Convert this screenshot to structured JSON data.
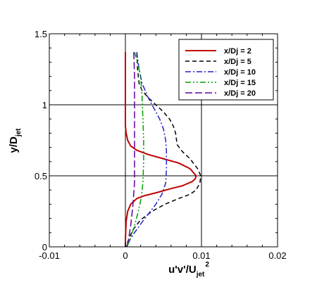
{
  "chart_data": {
    "type": "line",
    "xlabel": {
      "main": "u'v'/U",
      "sub": "jet",
      "sup": "2"
    },
    "ylabel": {
      "main": "y/D",
      "sub": "jet"
    },
    "xlim": [
      -0.01,
      0.02
    ],
    "ylim": [
      0,
      1.5
    ],
    "x_ticks": [
      -0.01,
      0,
      0.01,
      0.02
    ],
    "x_tick_labels": [
      "-0.01",
      "0",
      "0.01",
      "0.02"
    ],
    "y_ticks": [
      0,
      0.5,
      1,
      1.5
    ],
    "y_tick_labels": [
      "0",
      "0.5",
      "1",
      "1.5"
    ],
    "grid": true,
    "legend_position": "top-right",
    "series": [
      {
        "name": "x/Dj = 2",
        "color": "#c00000",
        "dash": "solid",
        "points": [
          [
            0.0,
            1.37
          ],
          [
            0.0,
            1.0
          ],
          [
            0.0,
            0.85
          ],
          [
            0.0001,
            0.8
          ],
          [
            0.0003,
            0.75
          ],
          [
            0.0007,
            0.71
          ],
          [
            0.0015,
            0.68
          ],
          [
            0.003,
            0.65
          ],
          [
            0.005,
            0.62
          ],
          [
            0.007,
            0.59
          ],
          [
            0.0085,
            0.55
          ],
          [
            0.0093,
            0.5
          ],
          [
            0.0092,
            0.48
          ],
          [
            0.0088,
            0.46
          ],
          [
            0.0075,
            0.43
          ],
          [
            0.006,
            0.41
          ],
          [
            0.004,
            0.38
          ],
          [
            0.0025,
            0.36
          ],
          [
            0.0015,
            0.34
          ],
          [
            0.0007,
            0.3
          ],
          [
            0.0003,
            0.25
          ],
          [
            0.0001,
            0.18
          ],
          [
            0.0,
            0.05
          ],
          [
            0.0,
            0.0
          ]
        ]
      },
      {
        "name": "x/Dj = 5",
        "color": "#000000",
        "dash": "6,4",
        "points": [
          [
            0.0015,
            1.37
          ],
          [
            0.0016,
            1.25
          ],
          [
            0.0018,
            1.15
          ],
          [
            0.0022,
            1.1
          ],
          [
            0.003,
            1.05
          ],
          [
            0.004,
            1.0
          ],
          [
            0.005,
            0.95
          ],
          [
            0.0058,
            0.9
          ],
          [
            0.0063,
            0.85
          ],
          [
            0.0066,
            0.8
          ],
          [
            0.0068,
            0.72
          ],
          [
            0.0075,
            0.67
          ],
          [
            0.0085,
            0.62
          ],
          [
            0.0095,
            0.55
          ],
          [
            0.0099,
            0.5
          ],
          [
            0.0098,
            0.45
          ],
          [
            0.0093,
            0.4
          ],
          [
            0.0085,
            0.37
          ],
          [
            0.007,
            0.34
          ],
          [
            0.0052,
            0.3
          ],
          [
            0.0035,
            0.25
          ],
          [
            0.002,
            0.19
          ],
          [
            0.001,
            0.12
          ],
          [
            0.0004,
            0.05
          ],
          [
            0.0001,
            0.0
          ]
        ]
      },
      {
        "name": "x/Dj = 10",
        "color": "#2222cc",
        "dash": "8,3,2,3",
        "points": [
          [
            0.0015,
            1.37
          ],
          [
            0.0018,
            1.25
          ],
          [
            0.0022,
            1.15
          ],
          [
            0.003,
            1.05
          ],
          [
            0.0038,
            0.97
          ],
          [
            0.0045,
            0.9
          ],
          [
            0.005,
            0.83
          ],
          [
            0.0053,
            0.75
          ],
          [
            0.0054,
            0.67
          ],
          [
            0.0054,
            0.55
          ],
          [
            0.0053,
            0.45
          ],
          [
            0.0048,
            0.37
          ],
          [
            0.004,
            0.3
          ],
          [
            0.003,
            0.23
          ],
          [
            0.002,
            0.16
          ],
          [
            0.0012,
            0.1
          ],
          [
            0.0006,
            0.05
          ],
          [
            0.0002,
            0.0
          ]
        ]
      },
      {
        "name": "x/Dj = 15",
        "color": "#00a000",
        "dash": "8,3,2,3,2,3",
        "points": [
          [
            0.0012,
            1.37
          ],
          [
            0.0016,
            1.3
          ],
          [
            0.002,
            1.2
          ],
          [
            0.0022,
            1.05
          ],
          [
            0.0023,
            0.9
          ],
          [
            0.0024,
            0.75
          ],
          [
            0.0024,
            0.6
          ],
          [
            0.0023,
            0.45
          ],
          [
            0.0021,
            0.35
          ],
          [
            0.0017,
            0.25
          ],
          [
            0.0012,
            0.15
          ],
          [
            0.0006,
            0.05
          ],
          [
            0.0002,
            0.0
          ]
        ]
      },
      {
        "name": "x/Dj = 20",
        "color": "#6000a0",
        "dash": "10,4",
        "points": [
          [
            0.0011,
            1.37
          ],
          [
            0.0012,
            1.2
          ],
          [
            0.0012,
            1.0
          ],
          [
            0.0012,
            0.8
          ],
          [
            0.0012,
            0.6
          ],
          [
            0.0012,
            0.45
          ],
          [
            0.001,
            0.3
          ],
          [
            0.0007,
            0.15
          ],
          [
            0.0004,
            0.05
          ],
          [
            0.0002,
            0.0
          ]
        ]
      }
    ]
  }
}
